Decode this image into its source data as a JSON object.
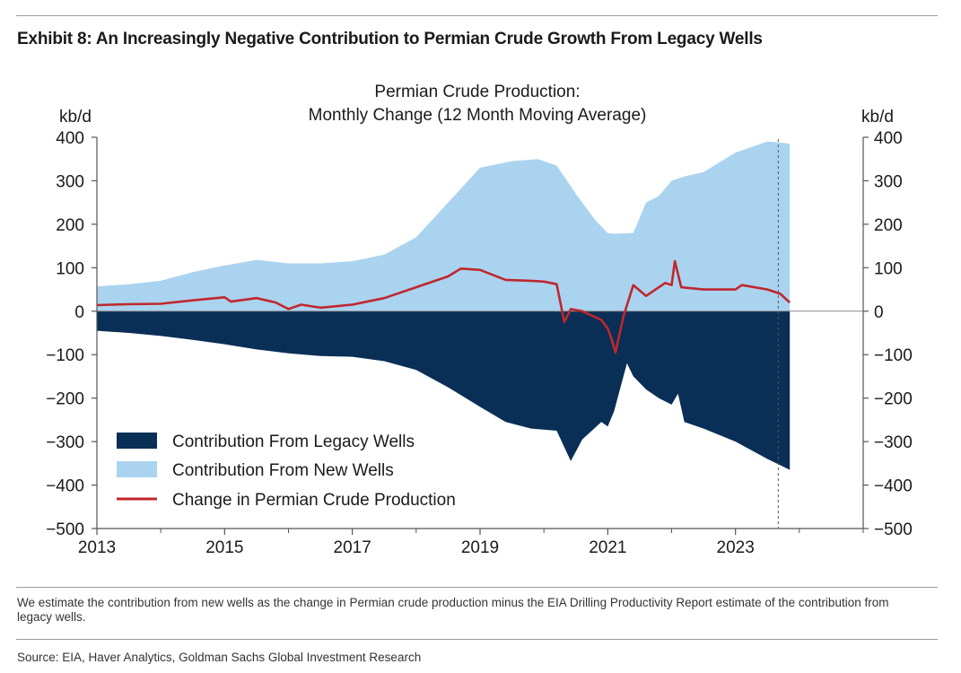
{
  "header": {
    "exhibit_title": "Exhibit 8: An Increasingly Negative Contribution to Permian Crude Growth From Legacy Wells"
  },
  "chart_data": {
    "type": "area",
    "title_line1": "Permian Crude Production:",
    "title_line2": "Monthly Change (12 Month Moving Average)",
    "ylabel_left": "kb/d",
    "ylabel_right": "kb/d",
    "ylim": [
      -500,
      400
    ],
    "yticks": [
      "400",
      "300",
      "200",
      "100",
      "0",
      "−100",
      "−200",
      "−300",
      "−400",
      "−500"
    ],
    "ytick_values": [
      400,
      300,
      200,
      100,
      0,
      -100,
      -200,
      -300,
      -400,
      -500
    ],
    "xlim": [
      2013,
      2025.0
    ],
    "xticks": [
      "2013",
      "2015",
      "2017",
      "2019",
      "2021",
      "2023"
    ],
    "xtick_values": [
      2013,
      2015,
      2017,
      2019,
      2021,
      2023
    ],
    "vertical_dashed_line_x": 2023.67,
    "legend_position": "bottom-left",
    "colors": {
      "legacy": "#0a2f57",
      "new_wells": "#aad3f0",
      "change": "#c0272d",
      "axis": "#555555"
    },
    "series": [
      {
        "name": "Contribution From Legacy Wells",
        "kind": "area",
        "x": [
          2013.0,
          2013.5,
          2014.0,
          2014.5,
          2015.0,
          2015.5,
          2016.0,
          2016.5,
          2017.0,
          2017.5,
          2018.0,
          2018.5,
          2019.0,
          2019.4,
          2019.8,
          2020.2,
          2020.42,
          2020.6,
          2020.9,
          2021.0,
          2021.1,
          2021.3,
          2021.4,
          2021.6,
          2021.8,
          2022.0,
          2022.1,
          2022.2,
          2022.5,
          2023.0,
          2023.5,
          2023.85
        ],
        "values": [
          -45,
          -50,
          -57,
          -66,
          -76,
          -88,
          -97,
          -103,
          -105,
          -115,
          -135,
          -175,
          -220,
          -255,
          -270,
          -275,
          -345,
          -295,
          -255,
          -265,
          -230,
          -120,
          -150,
          -180,
          -200,
          -215,
          -190,
          -255,
          -270,
          -300,
          -340,
          -365
        ]
      },
      {
        "name": "Contribution From New Wells",
        "kind": "area",
        "x": [
          2013.0,
          2013.5,
          2014.0,
          2014.5,
          2015.0,
          2015.5,
          2016.0,
          2016.5,
          2017.0,
          2017.5,
          2018.0,
          2018.5,
          2019.0,
          2019.5,
          2019.9,
          2020.2,
          2020.5,
          2020.8,
          2021.0,
          2021.1,
          2021.4,
          2021.6,
          2021.8,
          2022.0,
          2022.2,
          2022.5,
          2023.0,
          2023.5,
          2023.7,
          2023.85
        ],
        "values": [
          57,
          62,
          70,
          90,
          105,
          118,
          110,
          110,
          115,
          130,
          170,
          250,
          330,
          345,
          350,
          335,
          270,
          210,
          180,
          178,
          180,
          250,
          265,
          300,
          310,
          320,
          365,
          390,
          388,
          385
        ]
      },
      {
        "name": "Change in Permian Crude Production",
        "kind": "line",
        "x": [
          2013.0,
          2013.5,
          2014.0,
          2014.5,
          2015.0,
          2015.1,
          2015.5,
          2015.8,
          2016.0,
          2016.2,
          2016.5,
          2017.0,
          2017.5,
          2018.0,
          2018.5,
          2018.7,
          2019.0,
          2019.4,
          2019.8,
          2020.0,
          2020.2,
          2020.32,
          2020.42,
          2020.6,
          2020.9,
          2021.0,
          2021.05,
          2021.12,
          2021.25,
          2021.4,
          2021.6,
          2021.9,
          2022.0,
          2022.05,
          2022.15,
          2022.5,
          2023.0,
          2023.1,
          2023.5,
          2023.7,
          2023.85
        ],
        "values": [
          14,
          16,
          17,
          25,
          32,
          22,
          30,
          20,
          5,
          15,
          8,
          15,
          30,
          55,
          80,
          98,
          95,
          72,
          70,
          68,
          62,
          -25,
          5,
          0,
          -20,
          -40,
          -60,
          -95,
          -10,
          60,
          35,
          65,
          60,
          115,
          55,
          50,
          50,
          60,
          50,
          40,
          20
        ]
      }
    ]
  },
  "footer": {
    "footnote": "We estimate the contribution from new wells as the change in Permian crude production minus the EIA Drilling Productivity Report estimate of the contribution from legacy wells.",
    "source": "Source: EIA, Haver Analytics, Goldman Sachs Global Investment Research"
  }
}
